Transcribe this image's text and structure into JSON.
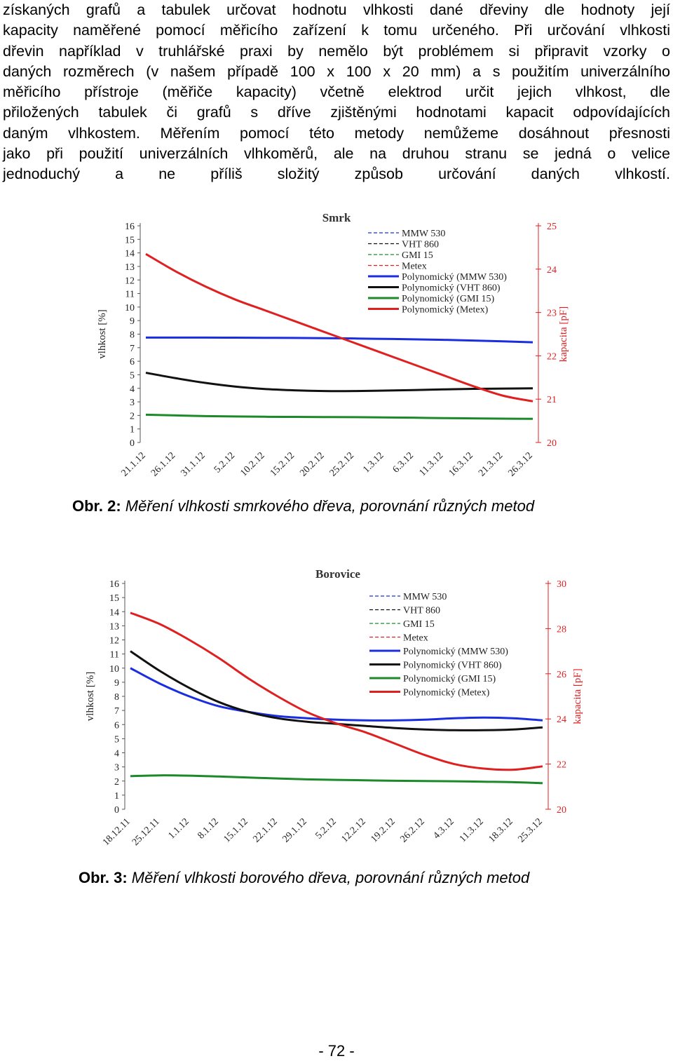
{
  "paragraph": {
    "lines": [
      "získaných grafů a tabulek určovat hodnotu vlhkosti dané dřeviny dle hodnoty její",
      "kapacity naměřené pomocí měřicího zařízení k tomu určeného. Při určování vlhkosti",
      "dřevin například v truhlářské praxi by nemělo být problémem si připravit vzorky o",
      "daných rozměrech (v našem případě 100 x 100 x 20 mm) a s použitím univerzálního",
      "měřicího přístroje (měřiče kapacity) včetně elektrod určit jejich vlhkost, dle",
      "přiložených tabulek či grafů s dříve zjištěnými hodnotami kapacit odpovídajících",
      "daným vlhkostem. Měřením pomocí této metody nemůžeme dosáhnout přesnosti",
      "jako při použití univerzálních vlhkoměrů, ale na druhou stranu se jedná o velice",
      "jednoduchý a ne příliš složitý způsob určování daných vlhkostí."
    ]
  },
  "figures": [
    {
      "caption_prefix": "Obr. 2:",
      "caption_text": " Měření vlhkosti smrkového dřeva, porovnání různých metod"
    },
    {
      "caption_prefix": "Obr. 3:",
      "caption_text": " Měření vlhkosti borového dřeva, porovnání různých metod"
    }
  ],
  "page_number": "- 72 -",
  "chart_data": [
    {
      "type": "line",
      "title": "Smrk",
      "ylabel": "vlhkost [%]",
      "y2label": "kapacita [pF]",
      "ylim": [
        0,
        16
      ],
      "y2lim": [
        20,
        25
      ],
      "yticks": [
        "0",
        "1",
        "2",
        "3",
        "4",
        "5",
        "6",
        "7",
        "8",
        "9",
        "10",
        "11",
        "12",
        "13",
        "14",
        "15",
        "16"
      ],
      "y2ticks": [
        "20",
        "21",
        "22",
        "23",
        "24",
        "25"
      ],
      "categories": [
        "21.1.12",
        "26.1.12",
        "31.1.12",
        "5.2.12",
        "10.2.12",
        "15.2.12",
        "20.2.12",
        "25.2.12",
        "1.3.12",
        "6.3.12",
        "11.3.12",
        "16.3.12",
        "21.3.12",
        "26.3.12"
      ],
      "legend": [
        "MMW 530",
        "VHT 860",
        "GMI 15",
        "Metex",
        "Polynomický (MMW 530)",
        "Polynomický (VHT 860)",
        "Polynomický (GMI 15)",
        "Polynomický (Metex)"
      ],
      "legend_position": "top-right",
      "colors": {
        "blue": "#1a2ee0",
        "black": "#111111",
        "green": "#1d8a2a",
        "red": "#e02020"
      },
      "series": [
        {
          "name": "Polynomický (MMW 530)",
          "axis": "left",
          "color": "#1a2ee0",
          "values": [
            7.75,
            7.75,
            7.75,
            7.74,
            7.73,
            7.72,
            7.7,
            7.68,
            7.65,
            7.62,
            7.58,
            7.53,
            7.47,
            7.4
          ]
        },
        {
          "name": "Polynomický (VHT 860)",
          "axis": "left",
          "color": "#111111",
          "values": [
            5.15,
            4.75,
            4.4,
            4.13,
            3.95,
            3.85,
            3.8,
            3.8,
            3.83,
            3.87,
            3.92,
            3.96,
            3.98,
            4.0
          ]
        },
        {
          "name": "Polynomický (GMI 15)",
          "axis": "left",
          "color": "#1d8a2a",
          "values": [
            2.05,
            2.0,
            1.95,
            1.92,
            1.9,
            1.89,
            1.88,
            1.87,
            1.85,
            1.83,
            1.8,
            1.78,
            1.76,
            1.75
          ]
        },
        {
          "name": "Polynomický (Metex)",
          "axis": "right",
          "color": "#e02020",
          "values": [
            24.35,
            23.95,
            23.6,
            23.3,
            23.05,
            22.8,
            22.55,
            22.3,
            22.05,
            21.8,
            21.55,
            21.3,
            21.08,
            20.95
          ]
        }
      ]
    },
    {
      "type": "line",
      "title": "Borovice",
      "ylabel": "vlhkost [%]",
      "y2label": "kapacita [pF]",
      "ylim": [
        0,
        16
      ],
      "y2lim": [
        20,
        30
      ],
      "yticks": [
        "0",
        "1",
        "2",
        "3",
        "4",
        "5",
        "6",
        "7",
        "8",
        "9",
        "10",
        "11",
        "12",
        "13",
        "14",
        "15",
        "16"
      ],
      "y2ticks": [
        "20",
        "22",
        "24",
        "26",
        "28",
        "30"
      ],
      "categories": [
        "18.12.11",
        "25.12.11",
        "1.1.12",
        "8.1.12",
        "15.1.12",
        "22.1.12",
        "29.1.12",
        "5.2.12",
        "12.2.12",
        "19.2.12",
        "26.2.12",
        "4.3.12",
        "11.3.12",
        "18.3.12",
        "25.3.12"
      ],
      "legend": [
        "MMW 530",
        "VHT 860",
        "GMI 15",
        "Metex",
        "Polynomický (MMW 530)",
        "Polynomický (VHT 860)",
        "Polynomický (GMI 15)",
        "Polynomický (Metex)"
      ],
      "legend_position": "top-right",
      "colors": {
        "blue": "#1a2ee0",
        "black": "#111111",
        "green": "#1d8a2a",
        "red": "#e02020"
      },
      "series": [
        {
          "name": "Polynomický (MMW 530)",
          "axis": "left",
          "color": "#1a2ee0",
          "values": [
            10.0,
            8.9,
            8.0,
            7.3,
            6.9,
            6.6,
            6.45,
            6.35,
            6.3,
            6.3,
            6.35,
            6.45,
            6.5,
            6.45,
            6.3
          ]
        },
        {
          "name": "Polynomický (VHT 860)",
          "axis": "left",
          "color": "#111111",
          "values": [
            11.2,
            9.8,
            8.6,
            7.6,
            6.9,
            6.45,
            6.2,
            6.05,
            5.9,
            5.75,
            5.65,
            5.6,
            5.6,
            5.65,
            5.8
          ]
        },
        {
          "name": "Polynomický (GMI 15)",
          "axis": "left",
          "color": "#1d8a2a",
          "values": [
            2.35,
            2.4,
            2.38,
            2.32,
            2.25,
            2.18,
            2.12,
            2.08,
            2.05,
            2.02,
            2.0,
            1.98,
            1.95,
            1.92,
            1.85
          ]
        },
        {
          "name": "Polynomický (Metex)",
          "axis": "right",
          "color": "#e02020",
          "values": [
            28.7,
            28.2,
            27.5,
            26.7,
            25.8,
            25.0,
            24.3,
            23.8,
            23.4,
            22.9,
            22.4,
            22.0,
            21.8,
            21.75,
            21.9
          ]
        }
      ]
    }
  ]
}
